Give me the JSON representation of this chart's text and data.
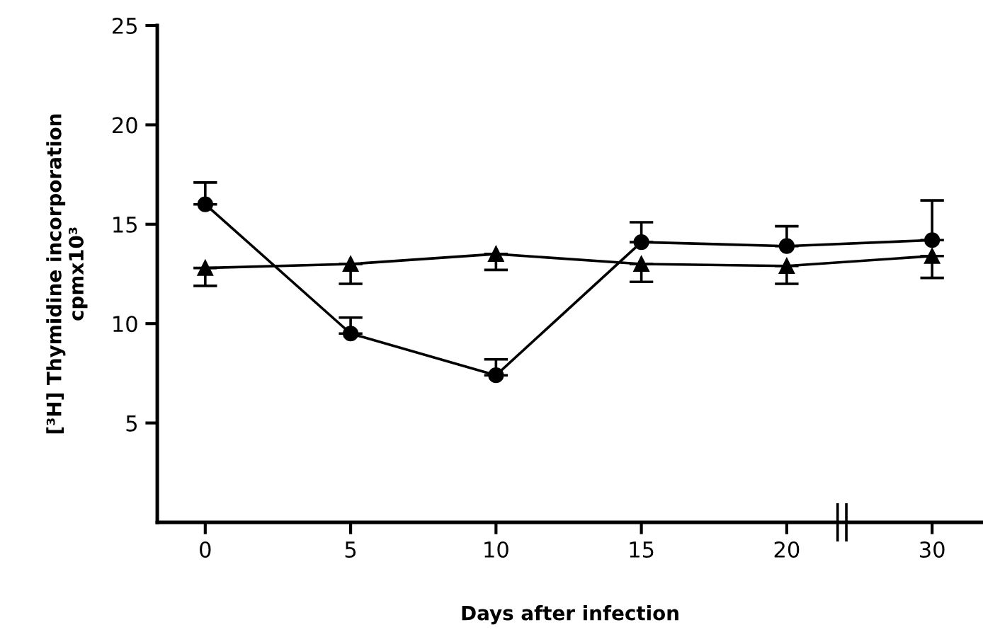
{
  "chart_data": {
    "type": "line",
    "xlabel": "Days after infection",
    "ylabel": "[³H] Thymidine incorporation\ncpmx10³",
    "categories": [
      "0",
      "5",
      "10",
      "15",
      "20",
      "30"
    ],
    "ylim": [
      0,
      25
    ],
    "yticks": [
      5,
      10,
      15,
      20,
      25
    ],
    "series": [
      {
        "color": "#000000",
        "marker": "circle",
        "values": [
          16,
          9.5,
          7.4,
          14.1,
          13.9,
          14.2
        ],
        "errors": [
          [
            16,
            17.1
          ],
          [
            9.5,
            10.3
          ],
          [
            7.4,
            8.2
          ],
          [
            14.1,
            15.1
          ],
          [
            13.9,
            14.9
          ],
          [
            14.2,
            16.2
          ]
        ]
      },
      {
        "color": "#000000",
        "marker": "triangle",
        "values": [
          12.8,
          13.0,
          13.5,
          13.0,
          12.9,
          13.4
        ],
        "errors": [
          [
            11.9,
            12.8
          ],
          [
            12.0,
            13.0
          ],
          [
            12.7,
            13.5
          ],
          [
            12.1,
            13.0
          ],
          [
            12.0,
            12.9
          ],
          [
            12.3,
            13.4
          ]
        ]
      }
    ]
  }
}
